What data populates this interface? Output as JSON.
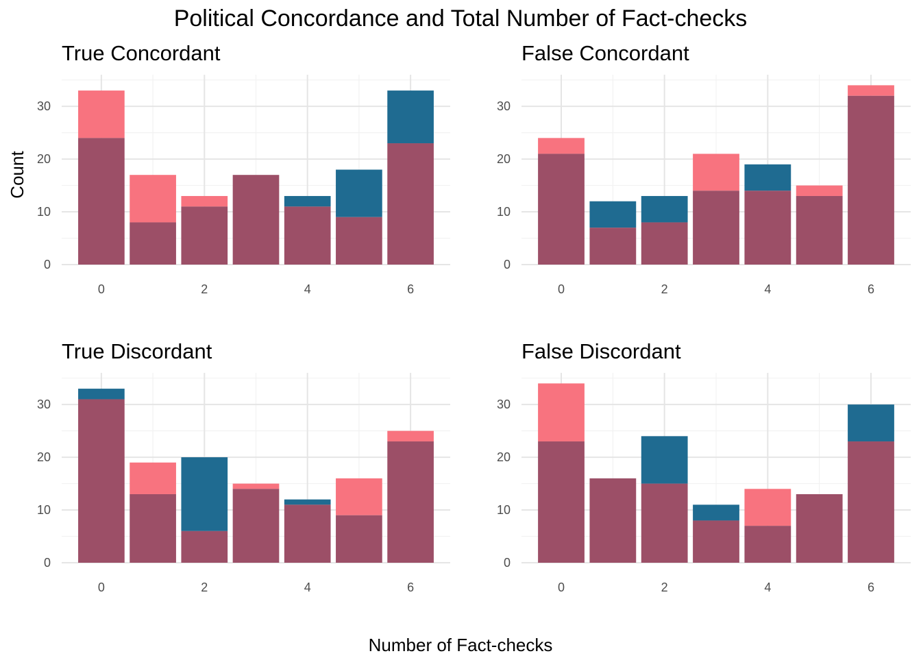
{
  "figure": {
    "title": "Political Concordance and Total Number of Fact-checks",
    "xlabel": "Number of Fact-checks",
    "ylabel": "Count"
  },
  "colors": {
    "series_pink": "#f8737f",
    "series_blue": "#1f6b91",
    "overlap": "#9c4f67",
    "grid_major": "#e5e5e5",
    "grid_minor": "#f2f2f2"
  },
  "chart_data": [
    {
      "type": "bar",
      "title": "True Concordant",
      "x": [
        0,
        1,
        2,
        3,
        4,
        5,
        6
      ],
      "series": [
        {
          "values": [
            33,
            17,
            13,
            17,
            11,
            9,
            23
          ]
        },
        {
          "values": [
            24,
            8,
            11,
            17,
            13,
            18,
            33
          ]
        }
      ],
      "ylim": [
        0,
        36
      ],
      "yticks": [
        0,
        10,
        20,
        30
      ],
      "xticks": [
        0,
        2,
        4,
        6
      ]
    },
    {
      "type": "bar",
      "title": "False Concordant",
      "x": [
        0,
        1,
        2,
        3,
        4,
        5,
        6
      ],
      "series": [
        {
          "values": [
            24,
            7,
            8,
            21,
            14,
            15,
            34
          ]
        },
        {
          "values": [
            21,
            12,
            13,
            14,
            19,
            13,
            32
          ]
        }
      ],
      "ylim": [
        0,
        36
      ],
      "yticks": [
        0,
        10,
        20,
        30
      ],
      "xticks": [
        0,
        2,
        4,
        6
      ]
    },
    {
      "type": "bar",
      "title": "True Discordant",
      "x": [
        0,
        1,
        2,
        3,
        4,
        5,
        6
      ],
      "series": [
        {
          "values": [
            31,
            19,
            6,
            15,
            11,
            16,
            25
          ]
        },
        {
          "values": [
            33,
            13,
            20,
            14,
            12,
            9,
            23
          ]
        }
      ],
      "ylim": [
        0,
        36
      ],
      "yticks": [
        0,
        10,
        20,
        30
      ],
      "xticks": [
        0,
        2,
        4,
        6
      ]
    },
    {
      "type": "bar",
      "title": "False Discordant",
      "x": [
        0,
        1,
        2,
        3,
        4,
        5,
        6
      ],
      "series": [
        {
          "values": [
            34,
            16,
            15,
            8,
            14,
            13,
            23
          ]
        },
        {
          "values": [
            23,
            16,
            24,
            11,
            7,
            13,
            30
          ]
        }
      ],
      "ylim": [
        0,
        36
      ],
      "yticks": [
        0,
        10,
        20,
        30
      ],
      "xticks": [
        0,
        2,
        4,
        6
      ]
    }
  ]
}
